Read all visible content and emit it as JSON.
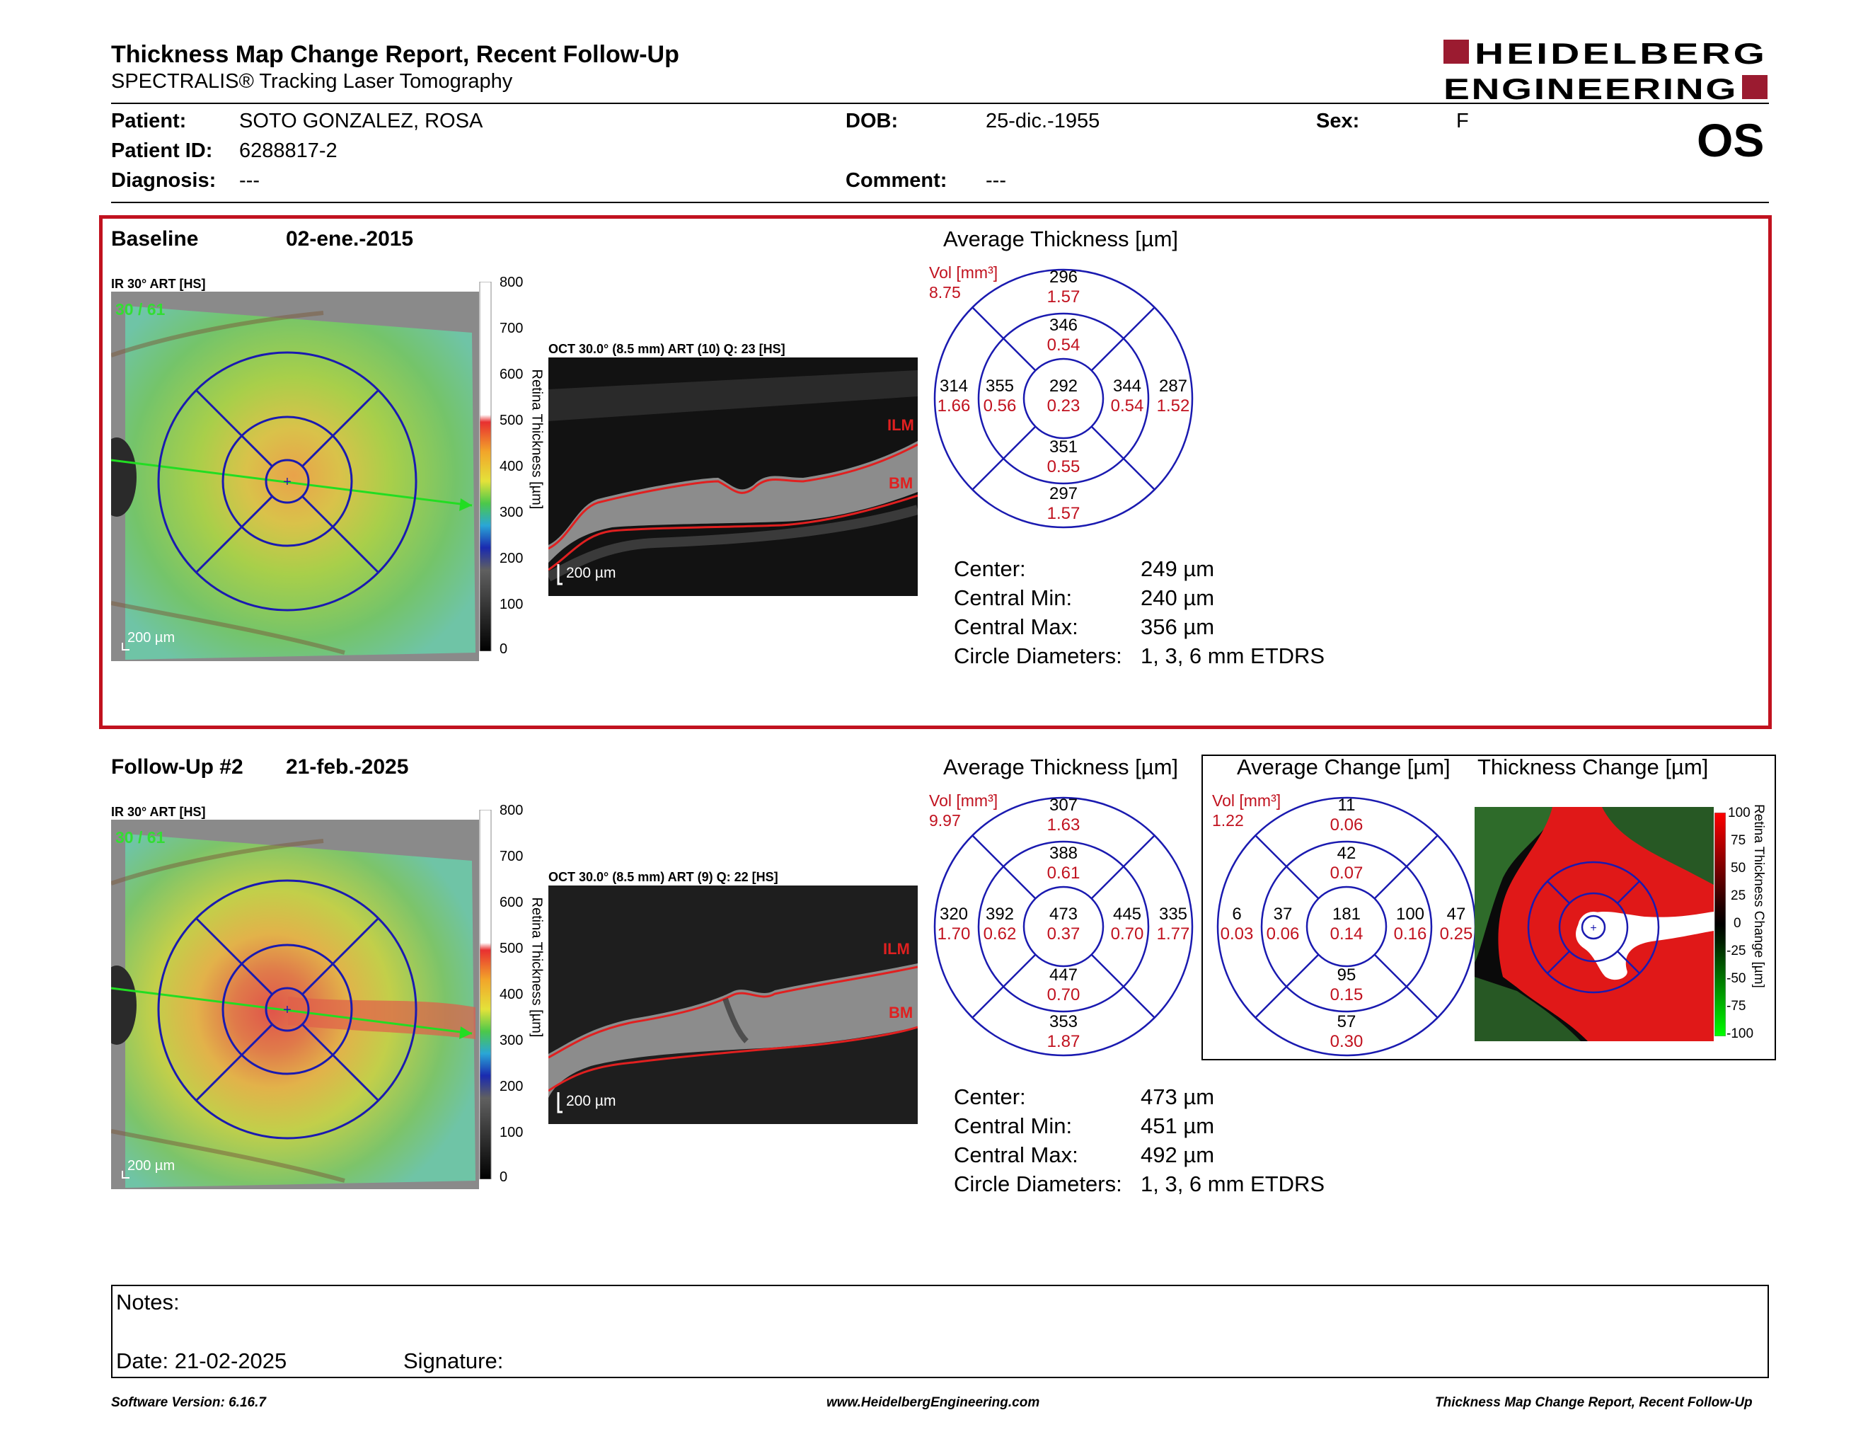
{
  "header": {
    "title": "Thickness Map Change Report, Recent Follow-Up",
    "subtitle": "SPECTRALIS® Tracking Laser Tomography",
    "logo_line1": "HEIDELBERG",
    "logo_line2": "ENGINEERING",
    "eye": "OS"
  },
  "patient": {
    "patient_label": "Patient:",
    "patient_value": "SOTO GONZALEZ, ROSA",
    "id_label": "Patient ID:",
    "id_value": "6288817-2",
    "diagnosis_label": "Diagnosis:",
    "diagnosis_value": "---",
    "dob_label": "DOB:",
    "dob_value": "25-dic.-1955",
    "comment_label": "Comment:",
    "comment_value": "---",
    "sex_label": "Sex:",
    "sex_value": "F"
  },
  "baseline": {
    "label": "Baseline",
    "date": "02-ene.-2015",
    "ir_label": "IR 30° ART [HS]",
    "quality": "30 / 61",
    "scale_label": "200 µm",
    "colorbar_ticks": [
      "800",
      "700",
      "600",
      "500",
      "400",
      "300",
      "200",
      "100",
      "0"
    ],
    "colorbar_title": "Retina Thickness [µm]",
    "oct_label": "OCT 30.0° (8.5 mm) ART (10) Q: 23 [HS]",
    "oct_scale": "200 µm",
    "ilm": "ILM",
    "bm": "BM",
    "avg_title": "Average Thickness [µm]",
    "vol_label": "Vol [mm³]",
    "vol_total": "8.75",
    "etdrs": {
      "outer_sup": [
        "296",
        "1.57"
      ],
      "inner_sup": [
        "346",
        "0.54"
      ],
      "outer_temp": [
        "314",
        "1.66"
      ],
      "inner_temp": [
        "355",
        "0.56"
      ],
      "center": [
        "292",
        "0.23"
      ],
      "inner_nas": [
        "344",
        "0.54"
      ],
      "outer_nas": [
        "287",
        "1.52"
      ],
      "inner_inf": [
        "351",
        "0.55"
      ],
      "outer_inf": [
        "297",
        "1.57"
      ]
    },
    "stats": [
      {
        "label": "Center:",
        "value": "249 µm"
      },
      {
        "label": "Central Min:",
        "value": "240 µm"
      },
      {
        "label": "Central Max:",
        "value": "356 µm"
      },
      {
        "label": "Circle Diameters:",
        "value": "1, 3, 6 mm ETDRS"
      }
    ]
  },
  "followup": {
    "label": "Follow-Up #2",
    "date": "21-feb.-2025",
    "ir_label": "IR 30° ART [HS]",
    "quality": "30 / 61",
    "scale_label": "200 µm",
    "colorbar_ticks": [
      "800",
      "700",
      "600",
      "500",
      "400",
      "300",
      "200",
      "100",
      "0"
    ],
    "colorbar_title": "Retina Thickness [µm]",
    "oct_label": "OCT 30.0° (8.5 mm) ART (9) Q: 22 [HS]",
    "oct_scale": "200 µm",
    "ilm": "ILM",
    "bm": "BM",
    "avg_title": "Average Thickness [µm]",
    "vol_label": "Vol [mm³]",
    "vol_total": "9.97",
    "etdrs": {
      "outer_sup": [
        "307",
        "1.63"
      ],
      "inner_sup": [
        "388",
        "0.61"
      ],
      "outer_temp": [
        "320",
        "1.70"
      ],
      "inner_temp": [
        "392",
        "0.62"
      ],
      "center": [
        "473",
        "0.37"
      ],
      "inner_nas": [
        "445",
        "0.70"
      ],
      "outer_nas": [
        "335",
        "1.77"
      ],
      "inner_inf": [
        "447",
        "0.70"
      ],
      "outer_inf": [
        "353",
        "1.87"
      ]
    },
    "stats": [
      {
        "label": "Center:",
        "value": "473 µm"
      },
      {
        "label": "Central Min:",
        "value": "451 µm"
      },
      {
        "label": "Central Max:",
        "value": "492 µm"
      },
      {
        "label": "Circle Diameters:",
        "value": "1, 3, 6 mm ETDRS"
      }
    ],
    "change_title": "Average Change [µm]",
    "change_vol_label": "Vol [mm³]",
    "change_vol_total": "1.22",
    "change": {
      "outer_sup": [
        "11",
        "0.06"
      ],
      "inner_sup": [
        "42",
        "0.07"
      ],
      "outer_temp": [
        "6",
        "0.03"
      ],
      "inner_temp": [
        "37",
        "0.06"
      ],
      "center": [
        "181",
        "0.14"
      ],
      "inner_nas": [
        "100",
        "0.16"
      ],
      "outer_nas": [
        "47",
        "0.25"
      ],
      "inner_inf": [
        "95",
        "0.15"
      ],
      "outer_inf": [
        "57",
        "0.30"
      ]
    },
    "thick_change_title": "Thickness Change [µm]",
    "change_ticks": [
      "100",
      "75",
      "50",
      "25",
      "0",
      "-25",
      "-50",
      "-75",
      "-100"
    ],
    "change_bar_title": "Retina Thickness Change [µm]"
  },
  "notes": {
    "notes_label": "Notes:",
    "date_label": "Date: 21-02-2025",
    "signature_label": "Signature:"
  },
  "footer": {
    "software": "Software Version: 6.16.7",
    "website": "www.HeidelbergEngineering.com",
    "report": "Thickness Map Change Report, Recent Follow-Up"
  },
  "colors": {
    "accent_red": "#c1121f",
    "etdrs_blue": "#1a1ab0",
    "value_red": "#c1121f"
  }
}
